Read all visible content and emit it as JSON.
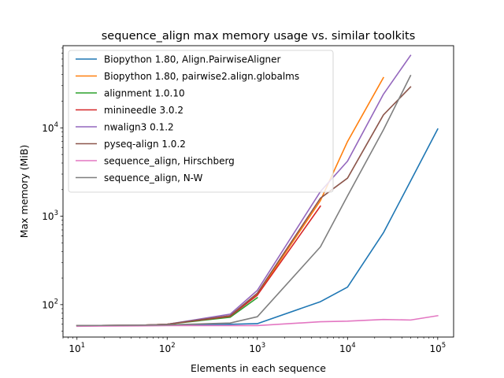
{
  "chart_data": {
    "type": "line",
    "title": "sequence_align max memory usage vs. similar toolkits",
    "xlabel": "Elements in each sequence",
    "ylabel": "Max memory (MiB)",
    "xscale": "log",
    "yscale": "log",
    "xlim": [
      7,
      150000
    ],
    "ylim": [
      43,
      85000
    ],
    "xticks": [
      {
        "value": 10,
        "base": "10",
        "exp": "1"
      },
      {
        "value": 100,
        "base": "10",
        "exp": "2"
      },
      {
        "value": 1000,
        "base": "10",
        "exp": "3"
      },
      {
        "value": 10000,
        "base": "10",
        "exp": "4"
      },
      {
        "value": 100000,
        "base": "10",
        "exp": "5"
      }
    ],
    "yticks": [
      {
        "value": 100,
        "base": "10",
        "exp": "2"
      },
      {
        "value": 1000,
        "base": "10",
        "exp": "3"
      },
      {
        "value": 10000,
        "base": "10",
        "exp": "4"
      }
    ],
    "grid": false,
    "legend_position": "top-left",
    "series": [
      {
        "name": "Biopython 1.80, Align.PairwiseAligner",
        "color": "#1f77b4",
        "x": [
          10,
          50,
          100,
          500,
          1000,
          5000,
          10000,
          25000,
          50000,
          100000
        ],
        "y": [
          58,
          58.5,
          59,
          60,
          61,
          108,
          158,
          650,
          2500,
          9700
        ]
      },
      {
        "name": "Biopython 1.80, pairwise2.align.globalms",
        "color": "#ff7f0e",
        "x": [
          10,
          50,
          100,
          500,
          1000,
          5000,
          10000,
          25000
        ],
        "y": [
          58,
          58.5,
          60,
          75,
          130,
          1500,
          7000,
          37000
        ]
      },
      {
        "name": "alignment 1.0.10",
        "color": "#2ca02c",
        "x": [
          10,
          50,
          100,
          500,
          1000
        ],
        "y": [
          58,
          58.5,
          60,
          72,
          120
        ]
      },
      {
        "name": "minineedle 3.0.2",
        "color": "#d62728",
        "x": [
          10,
          50,
          100,
          500,
          1000,
          5000
        ],
        "y": [
          58,
          58.5,
          60,
          74,
          128,
          1300
        ]
      },
      {
        "name": "nwalign3 0.1.2",
        "color": "#9467bd",
        "x": [
          10,
          50,
          100,
          500,
          1000,
          5000,
          10000,
          25000,
          50000
        ],
        "y": [
          58,
          58.5,
          60,
          78,
          145,
          1900,
          4200,
          24000,
          66000
        ]
      },
      {
        "name": "pyseq-align 1.0.2",
        "color": "#8c564b",
        "x": [
          10,
          50,
          100,
          500,
          1000,
          5000,
          10000,
          25000,
          50000
        ],
        "y": [
          58,
          58.5,
          60,
          75,
          135,
          1600,
          2700,
          14000,
          29000
        ]
      },
      {
        "name": "sequence_align, Hirschberg",
        "color": "#e377c2",
        "x": [
          10,
          50,
          100,
          500,
          1000,
          5000,
          10000,
          25000,
          50000,
          100000
        ],
        "y": [
          57,
          57.5,
          58,
          58,
          58,
          64,
          65,
          68,
          67,
          75
        ]
      },
      {
        "name": "sequence_align, N-W",
        "color": "#7f7f7f",
        "x": [
          10,
          50,
          100,
          500,
          1000,
          5000,
          10000,
          25000,
          50000
        ],
        "y": [
          58,
          58.5,
          59,
          62,
          73,
          450,
          1700,
          9500,
          39000
        ]
      }
    ]
  }
}
